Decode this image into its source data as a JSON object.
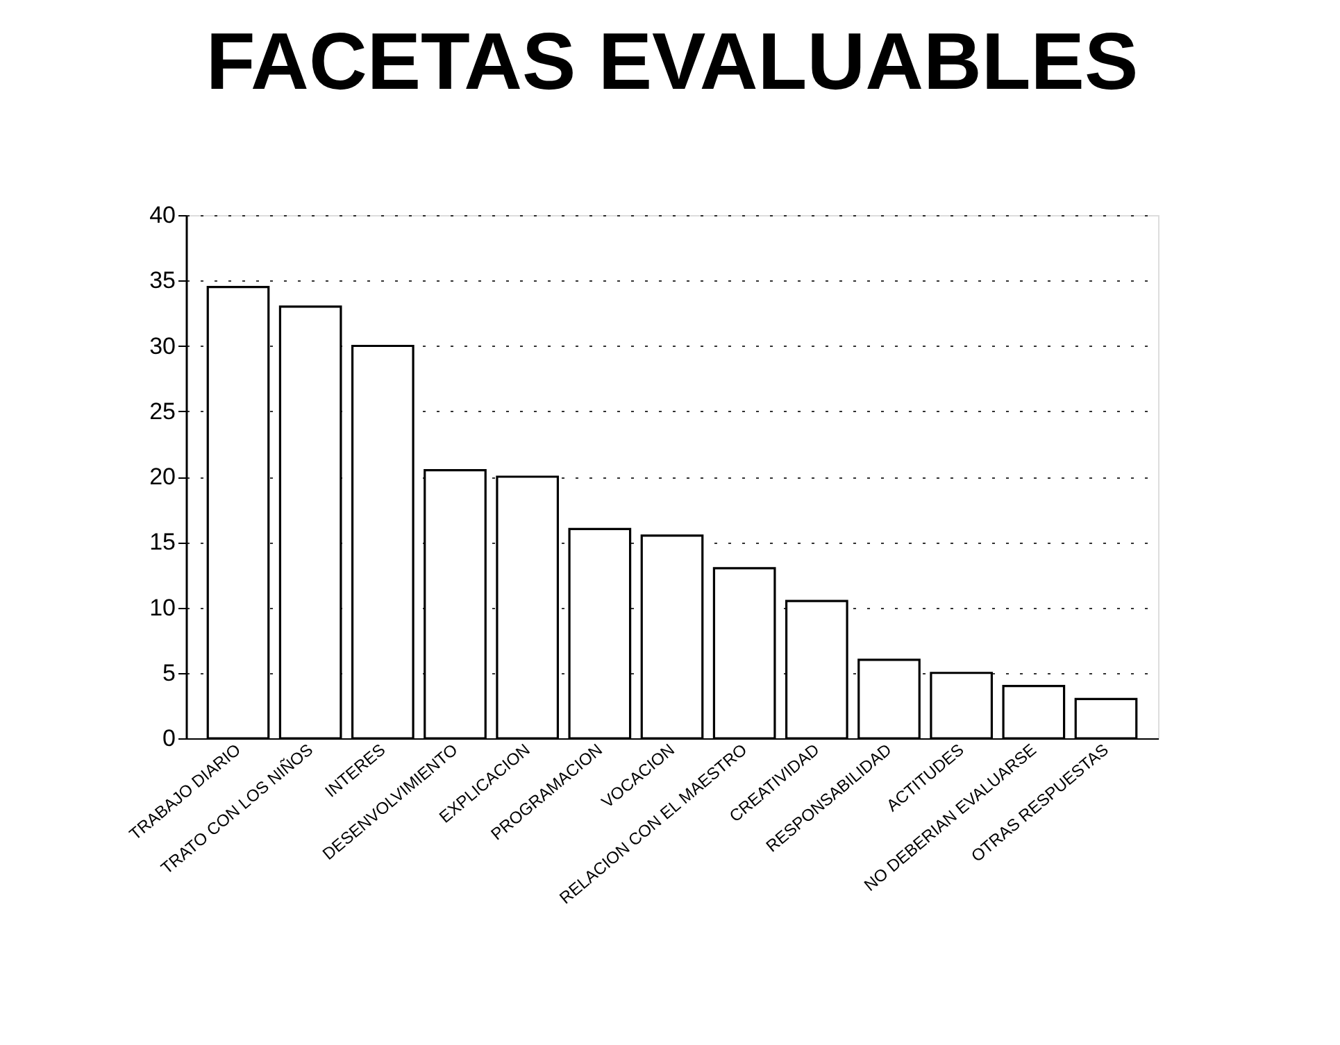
{
  "chart_data": {
    "type": "bar",
    "title": "FACETAS EVALUABLES",
    "categories": [
      "TRABAJO DIARIO",
      "TRATO CON LOS NIÑOS",
      "INTERES",
      "DESENVOLVIMIENTO",
      "EXPLICACION",
      "PROGRAMACION",
      "VOCACION",
      "RELACION CON EL MAESTRO",
      "CREATIVIDAD",
      "RESPONSABILIDAD",
      "ACTITUDES",
      "NO DEBERIAN EVALUARSE",
      "OTRAS RESPUESTAS"
    ],
    "values": [
      34.5,
      33,
      30,
      20.5,
      20,
      16,
      15.5,
      13,
      10.5,
      6,
      5,
      4,
      3
    ],
    "color": "#ffffff",
    "ylim": [
      0,
      40
    ],
    "yticks": [
      0,
      5,
      10,
      15,
      20,
      25,
      30,
      35,
      40
    ],
    "grid": "y"
  }
}
